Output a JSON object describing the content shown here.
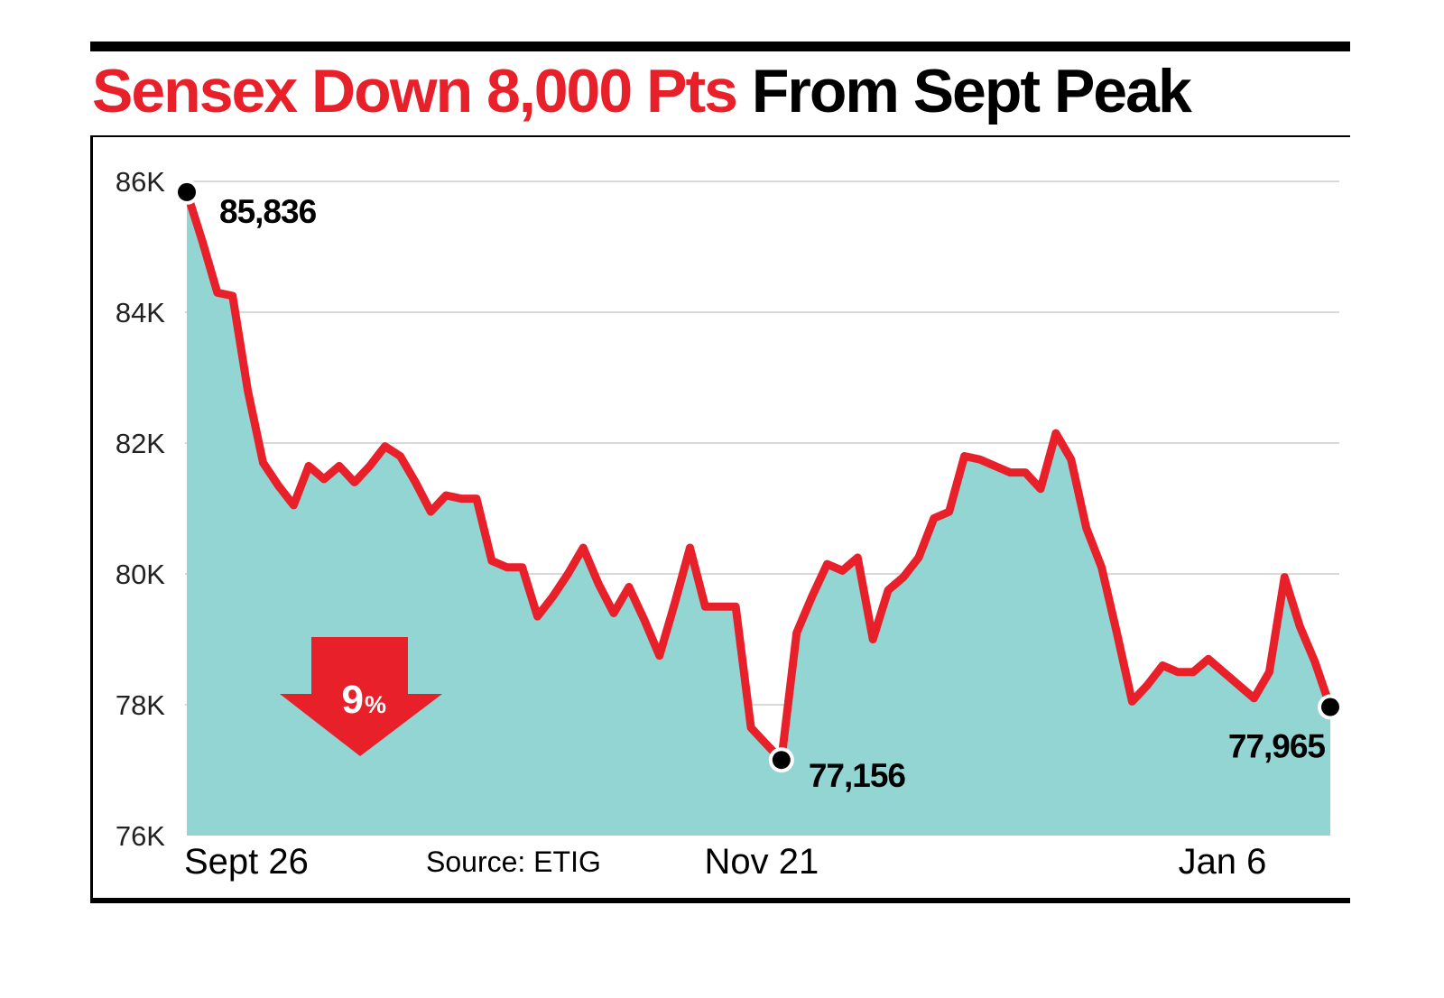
{
  "title": {
    "red": "Sensex Down 8,000 Pts",
    "black": "From Sept Peak"
  },
  "source": "Source: ETIG",
  "colors": {
    "line": "#e8202a",
    "area": "#93d5d3",
    "title_red": "#e8202a",
    "arrow": "#e8202a"
  },
  "badge": {
    "label": "9",
    "unit": "%",
    "icon": "down-arrow-icon"
  },
  "chart_data": {
    "type": "area",
    "title": "Sensex Down 8,000 Pts From Sept Peak",
    "ylim": [
      76000,
      86000
    ],
    "y_ticks": [
      {
        "value": 86000,
        "label": "86K"
      },
      {
        "value": 84000,
        "label": "84K"
      },
      {
        "value": 82000,
        "label": "82K"
      },
      {
        "value": 80000,
        "label": "80K"
      },
      {
        "value": 78000,
        "label": "78K"
      },
      {
        "value": 76000,
        "label": "76K"
      }
    ],
    "x_ticks": [
      {
        "index": 0,
        "label": "Sept 26"
      },
      {
        "index": 39,
        "label": "Nov 21"
      },
      {
        "index": 71,
        "label": "Jan 6"
      }
    ],
    "grid": true,
    "values": [
      85836,
      85100,
      84300,
      84250,
      82800,
      81700,
      81350,
      81050,
      81650,
      81450,
      81650,
      81400,
      81650,
      81950,
      81800,
      81400,
      80950,
      81200,
      81150,
      81150,
      80200,
      80100,
      80100,
      79350,
      79650,
      80000,
      80400,
      79850,
      79400,
      79800,
      79300,
      78750,
      79550,
      80400,
      79500,
      79500,
      79500,
      77650,
      77400,
      77156,
      79100,
      79650,
      80150,
      80050,
      80250,
      79000,
      79750,
      79950,
      80250,
      80850,
      80950,
      81800,
      81750,
      81650,
      81550,
      81550,
      81300,
      82150,
      81750,
      80700,
      80100,
      79100,
      78050,
      78300,
      78600,
      78500,
      78500,
      78700,
      78500,
      78300,
      78100,
      78500,
      79950,
      79200,
      78650,
      77965
    ],
    "annotations": [
      {
        "index": 0,
        "value": 85836,
        "label": "85,836"
      },
      {
        "index": 39,
        "value": 77156,
        "label": "77,156"
      },
      {
        "index": 75,
        "value": 77965,
        "label": "77,965"
      }
    ]
  }
}
